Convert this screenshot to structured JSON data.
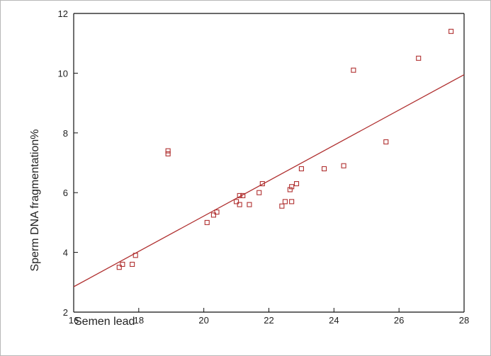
{
  "chart_data": {
    "type": "scatter",
    "title": "",
    "xlabel": "Semen lead",
    "ylabel": "Sperm DNA fragmentation%",
    "xlim": [
      16,
      28
    ],
    "ylim": [
      2,
      12
    ],
    "x_ticks": [
      16,
      18,
      20,
      22,
      24,
      26,
      28
    ],
    "y_ticks": [
      2,
      4,
      6,
      8,
      10,
      12
    ],
    "grid": false,
    "legend": "none",
    "colors": {
      "points": "#b03030",
      "fit_line": "#b03030",
      "axes": "#111111"
    },
    "points": [
      {
        "x": 17.4,
        "y": 3.5
      },
      {
        "x": 17.5,
        "y": 3.6
      },
      {
        "x": 17.8,
        "y": 3.6
      },
      {
        "x": 17.9,
        "y": 3.9
      },
      {
        "x": 18.9,
        "y": 7.4
      },
      {
        "x": 18.9,
        "y": 7.3
      },
      {
        "x": 20.1,
        "y": 5.0
      },
      {
        "x": 20.3,
        "y": 5.25
      },
      {
        "x": 20.4,
        "y": 5.35
      },
      {
        "x": 21.0,
        "y": 5.7
      },
      {
        "x": 21.1,
        "y": 5.9
      },
      {
        "x": 21.1,
        "y": 5.6
      },
      {
        "x": 21.2,
        "y": 5.9
      },
      {
        "x": 21.4,
        "y": 5.6
      },
      {
        "x": 21.7,
        "y": 6.0
      },
      {
        "x": 21.8,
        "y": 6.3
      },
      {
        "x": 22.4,
        "y": 5.55
      },
      {
        "x": 22.5,
        "y": 5.7
      },
      {
        "x": 22.65,
        "y": 6.1
      },
      {
        "x": 22.7,
        "y": 6.2
      },
      {
        "x": 22.7,
        "y": 5.7
      },
      {
        "x": 22.85,
        "y": 6.3
      },
      {
        "x": 23.0,
        "y": 6.8
      },
      {
        "x": 23.7,
        "y": 6.8
      },
      {
        "x": 24.3,
        "y": 6.9
      },
      {
        "x": 24.6,
        "y": 10.1
      },
      {
        "x": 25.6,
        "y": 7.7
      },
      {
        "x": 26.6,
        "y": 10.5
      },
      {
        "x": 27.6,
        "y": 11.4
      }
    ],
    "fit_line": [
      {
        "x": 16,
        "y": 2.85
      },
      {
        "x": 28,
        "y": 9.95
      }
    ]
  }
}
